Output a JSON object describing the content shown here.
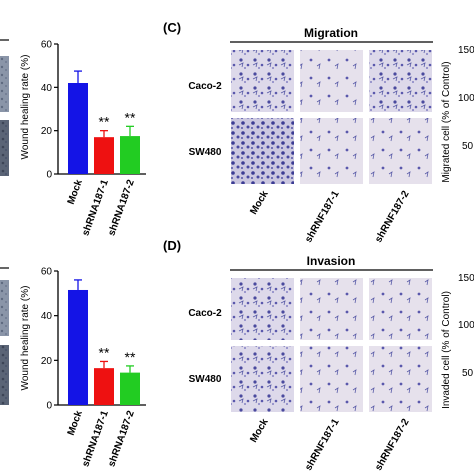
{
  "panels": {
    "C": {
      "label": "(C)",
      "assay_title": "Migration",
      "row_labels": [
        "Caco-2",
        "SW480"
      ],
      "col_labels": [
        "Mock",
        "shRNF187-1",
        "shRNF187-2"
      ],
      "right_axis_label": "Migrated cell (% of Control)",
      "right_axis_ticks": [
        "150",
        "100",
        "50"
      ]
    },
    "D": {
      "label": "(D)",
      "assay_title": "Invasion",
      "row_labels": [
        "Caco-2",
        "SW480"
      ],
      "col_labels": [
        "Mock",
        "shRNF187-1",
        "shRNF187-2"
      ],
      "right_axis_label": "Invaded cell (% of Control)",
      "right_axis_ticks": [
        "150",
        "100",
        "50"
      ]
    }
  },
  "chart_data": [
    {
      "type": "bar",
      "categories": [
        "Mock",
        "shRNA187-1",
        "shRNA187-2"
      ],
      "values": [
        42,
        17,
        17.5
      ],
      "errors": [
        5.5,
        3,
        4.5
      ],
      "significance": [
        "",
        "**",
        "**"
      ],
      "colors": [
        "#1414e6",
        "#ee1111",
        "#22cc22"
      ],
      "ylabel": "Wound healing rate (%)",
      "ylim": [
        0,
        60
      ],
      "yticks": [
        "0",
        "20",
        "40",
        "60"
      ]
    },
    {
      "type": "bar",
      "categories": [
        "Mock",
        "shRNA187-1",
        "shRNA187-2"
      ],
      "values": [
        51.5,
        16.5,
        14.5
      ],
      "errors": [
        4.5,
        3,
        3
      ],
      "significance": [
        "",
        "**",
        "**"
      ],
      "colors": [
        "#1414e6",
        "#ee1111",
        "#22cc22"
      ],
      "ylabel": "Wound healing rate (%)",
      "ylim": [
        0,
        60
      ],
      "yticks": [
        "0",
        "20",
        "40",
        "60"
      ]
    }
  ]
}
